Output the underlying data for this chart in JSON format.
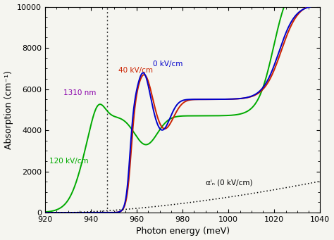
{
  "xlim": [
    920,
    1040
  ],
  "ylim": [
    0,
    10000
  ],
  "xlabel": "Photon energy (meV)",
  "ylabel": "Absorption (cm⁻¹)",
  "yticks": [
    0,
    2000,
    4000,
    6000,
    8000,
    10000
  ],
  "xticks": [
    920,
    940,
    960,
    980,
    1000,
    1020,
    1040
  ],
  "vline_x": 947,
  "label_1310nm": "1310 nm",
  "label_0kV": "0 kV/cm",
  "label_40kV": "40 kV/cm",
  "label_120kV": "120 kV/cm",
  "label_alpha": "αᴵₙ (0 kV/cm)",
  "color_0kV": "#0000cc",
  "color_40kV": "#cc2200",
  "color_120kV": "#00aa00",
  "color_1310nm": "#8800aa",
  "color_alpha": "#000000",
  "bg_color": "#f5f5f0"
}
